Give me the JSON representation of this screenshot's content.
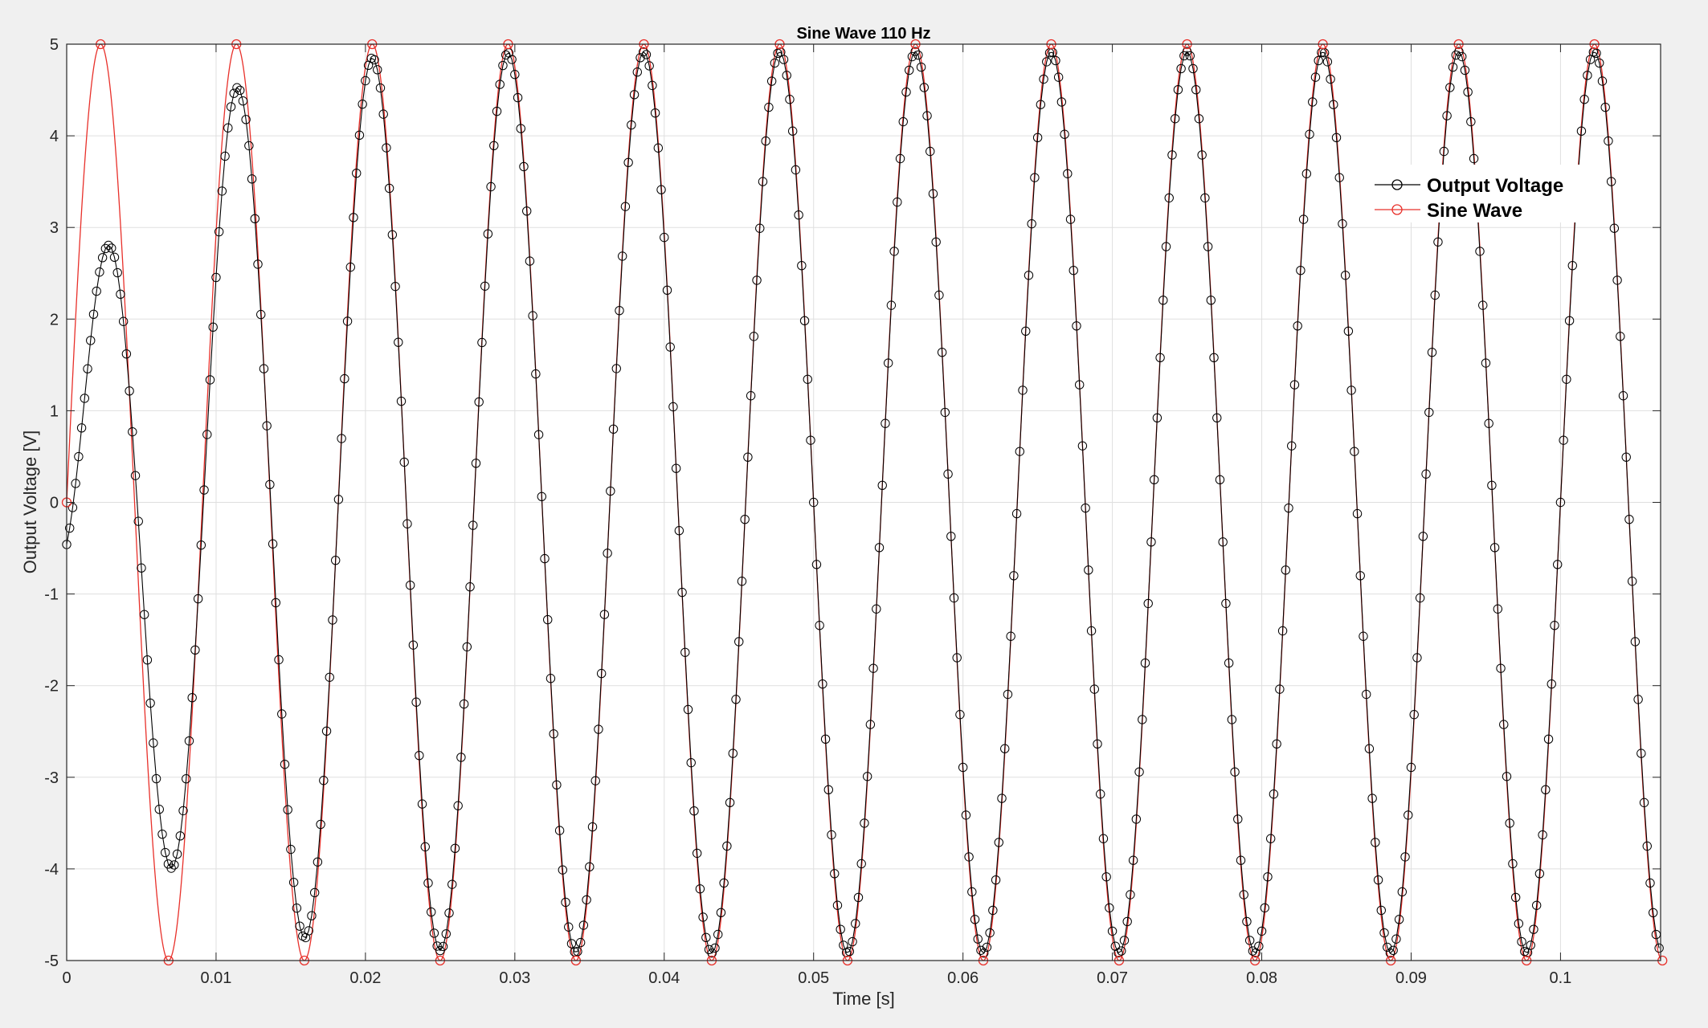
{
  "chart_data": {
    "type": "line",
    "title": "Sine Wave 110 Hz",
    "xlabel": "Time [s]",
    "ylabel": "Output Voltage [V]",
    "xlim": [
      0,
      0.1067
    ],
    "ylim": [
      -5,
      5
    ],
    "grid": true,
    "legend_position": "top-right",
    "x_ticks": [
      0,
      0.01,
      0.02,
      0.03,
      0.04,
      0.05,
      0.06,
      0.07,
      0.08,
      0.09,
      0.1
    ],
    "x_tick_labels": [
      "0",
      "0.01",
      "0.02",
      "0.03",
      "0.04",
      "0.05",
      "0.06",
      "0.07",
      "0.08",
      "0.09",
      "0.1"
    ],
    "y_ticks": [
      -5,
      -4,
      -3,
      -2,
      -1,
      0,
      1,
      2,
      3,
      4,
      5
    ],
    "y_tick_labels": [
      "-5",
      "-4",
      "-3",
      "-2",
      "-1",
      "0",
      "1",
      "2",
      "3",
      "4",
      "5"
    ],
    "series": [
      {
        "name": "Output Voltage",
        "color": "#000000",
        "marker": "circle",
        "frequency_hz": 110,
        "amplitude": 4.92,
        "sample_step_s": 0.0002,
        "initial_peaks": [
          {
            "t": 0.0027,
            "v": 2.04
          },
          {
            "t": 0.0069,
            "v": -4.08
          },
          {
            "t": 0.0115,
            "v": 4.72
          },
          {
            "t": 0.016,
            "v": -4.9
          }
        ]
      },
      {
        "name": "Sine Wave",
        "color": "#e8302a",
        "marker": "circle",
        "frequency_hz": 110,
        "amplitude": 5,
        "marker_points": [
          {
            "t": 0,
            "v": 0
          },
          {
            "t": 0.00227,
            "v": 5
          },
          {
            "t": 0.00682,
            "v": -5
          },
          {
            "t": 0.01136,
            "v": 5
          },
          {
            "t": 0.01591,
            "v": -5
          },
          {
            "t": 0.02045,
            "v": 5
          },
          {
            "t": 0.025,
            "v": -5
          },
          {
            "t": 0.02955,
            "v": 5
          },
          {
            "t": 0.03409,
            "v": -5
          },
          {
            "t": 0.03864,
            "v": 5
          },
          {
            "t": 0.04318,
            "v": -5
          },
          {
            "t": 0.04773,
            "v": 5
          },
          {
            "t": 0.05227,
            "v": -5
          },
          {
            "t": 0.05682,
            "v": 5
          },
          {
            "t": 0.06136,
            "v": -5
          },
          {
            "t": 0.06591,
            "v": 5
          },
          {
            "t": 0.07045,
            "v": -5
          },
          {
            "t": 0.075,
            "v": 5
          },
          {
            "t": 0.07955,
            "v": -5
          },
          {
            "t": 0.08409,
            "v": 5
          },
          {
            "t": 0.08864,
            "v": -5
          },
          {
            "t": 0.09318,
            "v": 5
          },
          {
            "t": 0.09773,
            "v": -5
          },
          {
            "t": 0.10227,
            "v": 5
          },
          {
            "t": 0.10682,
            "v": -5
          }
        ]
      }
    ]
  }
}
